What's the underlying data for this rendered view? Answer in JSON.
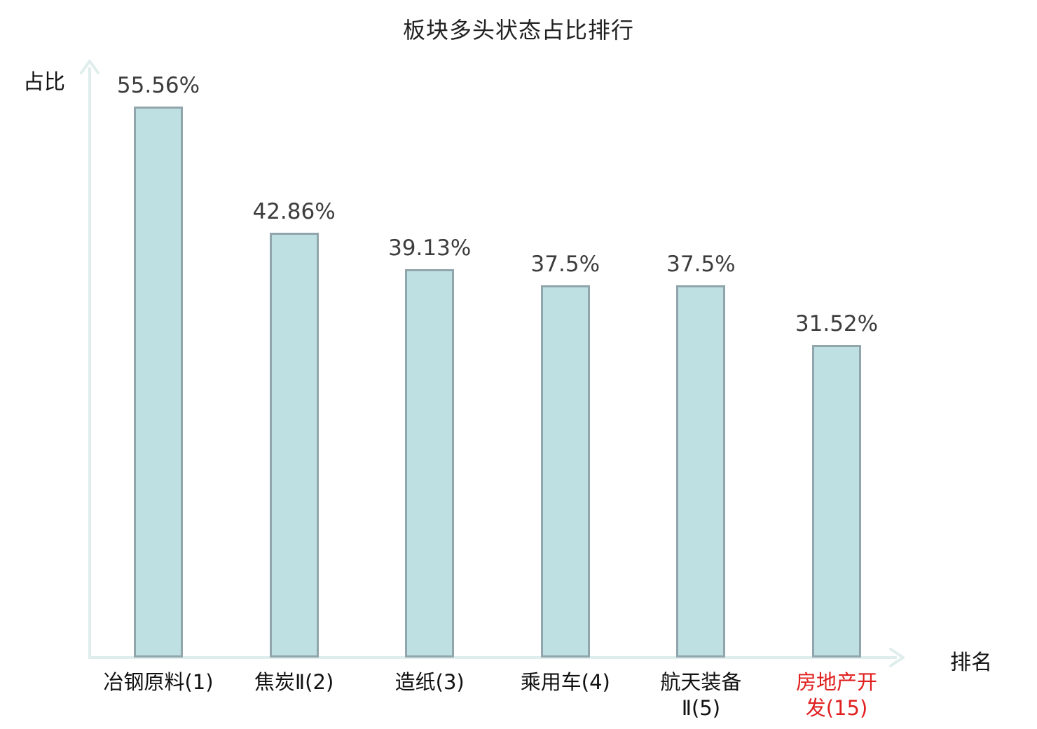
{
  "chart_data": {
    "type": "bar",
    "title": "板块多头状态占比排行",
    "xlabel": "排名",
    "ylabel": "占比",
    "categories": [
      "冶钢原料(1)",
      "焦炭Ⅱ(2)",
      "造纸(3)",
      "乘用车(4)",
      "航天装备Ⅱ(5)",
      "房地产开发(15)"
    ],
    "category_lines": [
      [
        "冶钢原料(1)"
      ],
      [
        "焦炭Ⅱ(2)"
      ],
      [
        "造纸(3)"
      ],
      [
        "乘用车(4)"
      ],
      [
        "航天装备",
        "Ⅱ(5)"
      ],
      [
        "房地产开",
        "发(15)"
      ]
    ],
    "values": [
      55.56,
      42.86,
      39.13,
      37.5,
      37.5,
      31.52
    ],
    "value_labels": [
      "55.56%",
      "42.86%",
      "39.13%",
      "37.5%",
      "37.5%",
      "31.52%"
    ],
    "highlighted_category_index": 5,
    "ylim": [
      0,
      60
    ],
    "grid": false,
    "legend": "none",
    "colors": {
      "bar_fill": "#bee0e3",
      "bar_border": "#91a6ac",
      "axis": "#dfeeec",
      "value_text": "#3d3d3d",
      "category_text": "#111111",
      "highlight_text": "#e02020",
      "title_text": "#222222"
    }
  }
}
